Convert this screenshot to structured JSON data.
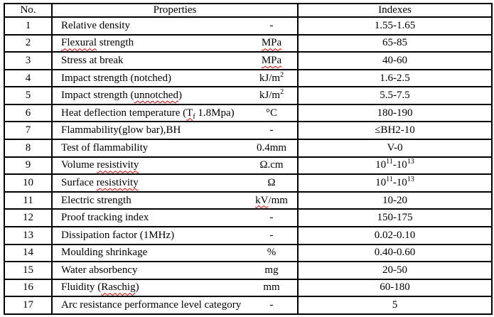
{
  "header": {
    "no": "No.",
    "properties": "Properties",
    "indexes": "Indexes"
  },
  "colors": {
    "border": "#000000",
    "text": "#000000",
    "background": "#ffffff",
    "spellcheck_squiggle": "#e00000"
  },
  "rows": [
    {
      "no": "1",
      "property": [
        {
          "t": "Relative density"
        }
      ],
      "unit": [
        {
          "t": "-"
        }
      ],
      "index": [
        {
          "t": "1.55-1.65"
        }
      ]
    },
    {
      "no": "2",
      "property": [
        {
          "t": "Flexural",
          "sq": true
        },
        {
          "t": " strength"
        }
      ],
      "unit": [
        {
          "t": "MPa",
          "sq": true
        }
      ],
      "index": [
        {
          "t": "65-85"
        }
      ]
    },
    {
      "no": "3",
      "property": [
        {
          "t": "Stress at break"
        }
      ],
      "unit": [
        {
          "t": "MPa",
          "sq": true
        }
      ],
      "index": [
        {
          "t": "40-60"
        }
      ]
    },
    {
      "no": "4",
      "property": [
        {
          "t": "Impact strength (notched)"
        }
      ],
      "unit": [
        {
          "t": "kJ/m"
        },
        {
          "t": "2",
          "sup": true
        }
      ],
      "index": [
        {
          "t": "1.6-2.5"
        }
      ]
    },
    {
      "no": "5",
      "property": [
        {
          "t": "Impact strength ("
        },
        {
          "t": "unnotched",
          "sq": true
        },
        {
          "t": ")"
        }
      ],
      "unit": [
        {
          "t": "kJ/m"
        },
        {
          "t": "2",
          "sup": true
        }
      ],
      "index": [
        {
          "t": "5.5-7.5"
        }
      ]
    },
    {
      "no": "6",
      "property": [
        {
          "t": "Heat deflection temperature ("
        },
        {
          "t": "T",
          "sq": true
        },
        {
          "t": "f",
          "sub": true,
          "sq": true
        },
        {
          "t": " 1.8Mpa)"
        }
      ],
      "unit": [
        {
          "t": "°C"
        }
      ],
      "index": [
        {
          "t": "180-190"
        }
      ]
    },
    {
      "no": "7",
      "property": [
        {
          "t": "Flammability(glow bar),BH"
        }
      ],
      "unit": [
        {
          "t": "-"
        }
      ],
      "index": [
        {
          "t": "≤BH2-10"
        }
      ]
    },
    {
      "no": "8",
      "property": [
        {
          "t": "Test of flammability"
        }
      ],
      "unit": [
        {
          "t": "0.4mm"
        }
      ],
      "index": [
        {
          "t": "V-0"
        }
      ]
    },
    {
      "no": "9",
      "property": [
        {
          "t": "Volume "
        },
        {
          "t": "resistivity",
          "sq": true
        }
      ],
      "unit": [
        {
          "t": "Ω.cm"
        }
      ],
      "index": [
        {
          "t": "10"
        },
        {
          "t": "11",
          "sup": true
        },
        {
          "t": "-10"
        },
        {
          "t": "13",
          "sup": true
        }
      ]
    },
    {
      "no": "10",
      "property": [
        {
          "t": "Surface "
        },
        {
          "t": "resistivity",
          "sq": true
        }
      ],
      "unit": [
        {
          "t": "Ω"
        }
      ],
      "index": [
        {
          "t": "10"
        },
        {
          "t": "11",
          "sup": true
        },
        {
          "t": "-10"
        },
        {
          "t": "13",
          "sup": true
        }
      ]
    },
    {
      "no": "11",
      "property": [
        {
          "t": "Electric strength"
        }
      ],
      "unit": [
        {
          "t": "kV",
          "sq": true
        },
        {
          "t": "/mm"
        }
      ],
      "index": [
        {
          "t": "10-20"
        }
      ]
    },
    {
      "no": "12",
      "property": [
        {
          "t": "Proof tracking index"
        }
      ],
      "unit": [
        {
          "t": "-"
        }
      ],
      "index": [
        {
          "t": "150-175"
        }
      ]
    },
    {
      "no": "13",
      "property": [
        {
          "t": "Dissipation factor (1MHz)"
        }
      ],
      "unit": [
        {
          "t": "-"
        }
      ],
      "index": [
        {
          "t": "0.02-0.10"
        }
      ]
    },
    {
      "no": "14",
      "property": [
        {
          "t": "Moulding shrinkage"
        }
      ],
      "unit": [
        {
          "t": "%"
        }
      ],
      "index": [
        {
          "t": "0.40-0.60"
        }
      ]
    },
    {
      "no": "15",
      "property": [
        {
          "t": "Water absorbency"
        }
      ],
      "unit": [
        {
          "t": "mg"
        }
      ],
      "index": [
        {
          "t": "20-50"
        }
      ]
    },
    {
      "no": "16",
      "property": [
        {
          "t": "Fluidity ("
        },
        {
          "t": "Raschig",
          "sq": true
        },
        {
          "t": ")"
        }
      ],
      "unit": [
        {
          "t": "mm"
        }
      ],
      "index": [
        {
          "t": "60-180"
        }
      ]
    },
    {
      "no": "17",
      "property": [
        {
          "t": "Arc resistance performance level category"
        }
      ],
      "unit": [
        {
          "t": "-"
        }
      ],
      "index": [
        {
          "t": "5"
        }
      ]
    }
  ]
}
